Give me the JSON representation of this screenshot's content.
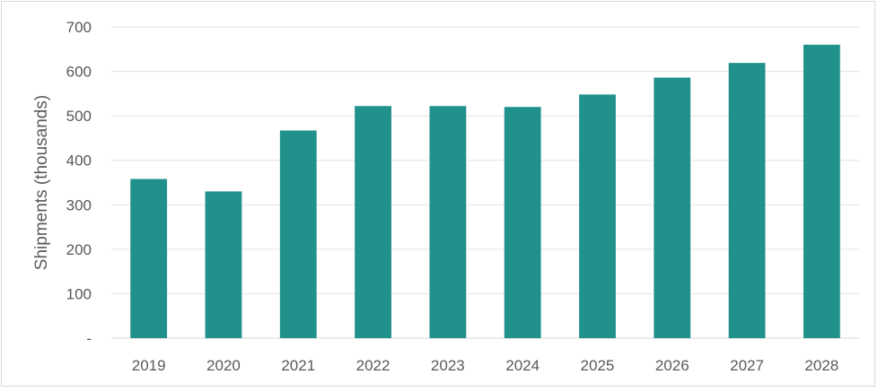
{
  "chart_data": {
    "type": "bar",
    "title": "",
    "xlabel": "",
    "ylabel": "Shipments (thousands)",
    "categories": [
      "2019",
      "2020",
      "2021",
      "2022",
      "2023",
      "2024",
      "2025",
      "2026",
      "2027",
      "2028"
    ],
    "values": [
      358,
      330,
      467,
      522,
      522,
      520,
      548,
      586,
      619,
      660
    ],
    "ylim": [
      0,
      700
    ],
    "yticks": [
      0,
      100,
      200,
      300,
      400,
      500,
      600,
      700
    ],
    "ytick_labels": [
      "-",
      "100",
      "200",
      "300",
      "400",
      "500",
      "600",
      "700"
    ],
    "bar_color": "#21918c",
    "grid": true,
    "legend": "none"
  }
}
